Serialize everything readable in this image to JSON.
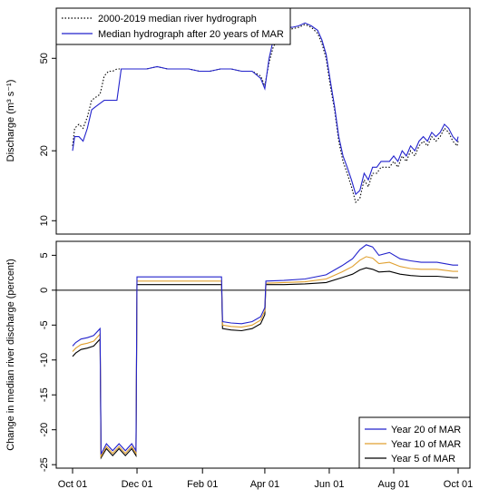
{
  "chart_data": [
    {
      "type": "line",
      "ylabel": "Discharge (m³ s⁻¹)",
      "y_scale": "log",
      "ylim": [
        9,
        80
      ],
      "y_ticks": [
        10,
        20,
        50
      ],
      "x_ticks": [
        "Oct 01",
        "Dec 01",
        "Feb 01",
        "Apr 01",
        "Jun 01",
        "Aug 01",
        "Oct 01"
      ],
      "x_tick_days": [
        0,
        61,
        123,
        182,
        243,
        304,
        365
      ],
      "legend": {
        "position": "top-left",
        "entries": [
          "2000-2019 median river hydrograph",
          "Median hydrograph after 20 years of MAR"
        ]
      },
      "series": [
        {
          "name": "2000-2019 median river hydrograph",
          "color": "#000000",
          "style": "dotted",
          "points": [
            [
              0,
              21
            ],
            [
              2,
              25
            ],
            [
              6,
              26
            ],
            [
              10,
              25
            ],
            [
              14,
              28
            ],
            [
              18,
              33
            ],
            [
              22,
              34
            ],
            [
              26,
              35
            ],
            [
              30,
              42
            ],
            [
              34,
              44
            ],
            [
              38,
              44
            ],
            [
              42,
              45
            ],
            [
              50,
              45
            ],
            [
              60,
              45
            ],
            [
              70,
              45
            ],
            [
              80,
              46
            ],
            [
              90,
              45
            ],
            [
              100,
              45
            ],
            [
              110,
              45
            ],
            [
              120,
              44
            ],
            [
              130,
              44
            ],
            [
              140,
              45
            ],
            [
              150,
              45
            ],
            [
              160,
              44
            ],
            [
              170,
              44
            ],
            [
              178,
              42
            ],
            [
              182,
              38
            ],
            [
              186,
              48
            ],
            [
              190,
              56
            ],
            [
              196,
              62
            ],
            [
              202,
              66
            ],
            [
              208,
              67
            ],
            [
              214,
              68
            ],
            [
              220,
              70
            ],
            [
              226,
              68
            ],
            [
              232,
              64
            ],
            [
              236,
              58
            ],
            [
              240,
              50
            ],
            [
              244,
              38
            ],
            [
              248,
              30
            ],
            [
              252,
              22
            ],
            [
              256,
              18
            ],
            [
              260,
              16
            ],
            [
              264,
              14
            ],
            [
              268,
              12
            ],
            [
              272,
              12.5
            ],
            [
              276,
              15
            ],
            [
              280,
              14
            ],
            [
              284,
              16
            ],
            [
              288,
              16
            ],
            [
              292,
              17
            ],
            [
              296,
              17
            ],
            [
              300,
              17
            ],
            [
              304,
              18
            ],
            [
              308,
              17
            ],
            [
              312,
              19
            ],
            [
              316,
              18
            ],
            [
              320,
              20
            ],
            [
              324,
              19
            ],
            [
              328,
              21
            ],
            [
              332,
              22
            ],
            [
              336,
              21
            ],
            [
              340,
              23
            ],
            [
              344,
              22
            ],
            [
              348,
              23
            ],
            [
              352,
              25
            ],
            [
              356,
              24
            ],
            [
              360,
              22
            ],
            [
              364,
              21
            ],
            [
              365,
              22
            ]
          ]
        },
        {
          "name": "Median hydrograph after 20 years of MAR",
          "color": "#2222cc",
          "style": "solid",
          "points": [
            [
              0,
              20
            ],
            [
              2,
              23
            ],
            [
              6,
              23
            ],
            [
              10,
              22
            ],
            [
              14,
              25
            ],
            [
              18,
              30
            ],
            [
              22,
              31
            ],
            [
              26,
              32
            ],
            [
              30,
              33
            ],
            [
              34,
              33
            ],
            [
              38,
              33
            ],
            [
              42,
              33
            ],
            [
              46,
              45
            ],
            [
              50,
              45
            ],
            [
              60,
              45
            ],
            [
              70,
              45
            ],
            [
              80,
              46
            ],
            [
              90,
              45
            ],
            [
              100,
              45
            ],
            [
              110,
              45
            ],
            [
              120,
              44
            ],
            [
              130,
              44
            ],
            [
              140,
              45
            ],
            [
              150,
              45
            ],
            [
              160,
              44
            ],
            [
              170,
              44
            ],
            [
              178,
              41
            ],
            [
              182,
              37
            ],
            [
              186,
              50
            ],
            [
              190,
              60
            ],
            [
              196,
              64
            ],
            [
              202,
              68
            ],
            [
              208,
              68
            ],
            [
              214,
              69
            ],
            [
              220,
              71
            ],
            [
              226,
              69
            ],
            [
              232,
              66
            ],
            [
              236,
              60
            ],
            [
              240,
              52
            ],
            [
              244,
              40
            ],
            [
              248,
              31
            ],
            [
              252,
              23
            ],
            [
              256,
              19
            ],
            [
              260,
              17
            ],
            [
              264,
              15
            ],
            [
              268,
              13
            ],
            [
              272,
              13.5
            ],
            [
              276,
              16
            ],
            [
              280,
              15
            ],
            [
              284,
              17
            ],
            [
              288,
              17
            ],
            [
              292,
              18
            ],
            [
              296,
              18
            ],
            [
              300,
              18
            ],
            [
              304,
              19
            ],
            [
              308,
              18
            ],
            [
              312,
              20
            ],
            [
              316,
              19
            ],
            [
              320,
              21
            ],
            [
              324,
              20
            ],
            [
              328,
              22
            ],
            [
              332,
              23
            ],
            [
              336,
              22
            ],
            [
              340,
              24
            ],
            [
              344,
              23
            ],
            [
              348,
              24
            ],
            [
              352,
              26
            ],
            [
              356,
              25
            ],
            [
              360,
              23
            ],
            [
              364,
              22
            ],
            [
              365,
              23
            ]
          ]
        }
      ]
    },
    {
      "type": "line",
      "ylabel": "Change in median river discharge (percent)",
      "ylim": [
        -25.5,
        7
      ],
      "y_ticks": [
        -25,
        -20,
        -15,
        -10,
        -5,
        0,
        5
      ],
      "x_ticks": [
        "Oct 01",
        "Dec 01",
        "Feb 01",
        "Apr 01",
        "Jun 01",
        "Aug 01",
        "Oct 01"
      ],
      "x_tick_days": [
        0,
        61,
        123,
        182,
        243,
        304,
        365
      ],
      "zero_line": true,
      "legend": {
        "position": "bottom-right",
        "entries": [
          "Year 20 of MAR",
          "Year 10 of MAR",
          "Year 5 of MAR"
        ]
      },
      "series": [
        {
          "name": "Year 20 of MAR",
          "color": "#2222cc",
          "points": [
            [
              0,
              -8
            ],
            [
              3,
              -7.5
            ],
            [
              8,
              -7
            ],
            [
              14,
              -6.8
            ],
            [
              20,
              -6.5
            ],
            [
              26,
              -5.5
            ],
            [
              27,
              -23.5
            ],
            [
              32,
              -22
            ],
            [
              38,
              -23
            ],
            [
              44,
              -22
            ],
            [
              50,
              -23
            ],
            [
              56,
              -22
            ],
            [
              60,
              -23
            ],
            [
              61,
              1.9
            ],
            [
              100,
              1.9
            ],
            [
              141,
              1.9
            ],
            [
              142,
              -4.5
            ],
            [
              150,
              -4.7
            ],
            [
              160,
              -4.8
            ],
            [
              170,
              -4.5
            ],
            [
              178,
              -3.8
            ],
            [
              182,
              -2.5
            ],
            [
              183,
              1.3
            ],
            [
              200,
              1.4
            ],
            [
              220,
              1.6
            ],
            [
              240,
              2.2
            ],
            [
              255,
              3.5
            ],
            [
              265,
              4.5
            ],
            [
              272,
              5.8
            ],
            [
              278,
              6.5
            ],
            [
              284,
              6.2
            ],
            [
              290,
              5.0
            ],
            [
              300,
              5.4
            ],
            [
              310,
              4.5
            ],
            [
              320,
              4.2
            ],
            [
              330,
              4.0
            ],
            [
              345,
              4.0
            ],
            [
              360,
              3.6
            ],
            [
              365,
              3.6
            ]
          ]
        },
        {
          "name": "Year 10 of MAR",
          "color": "#e0a030",
          "points": [
            [
              0,
              -8.8
            ],
            [
              3,
              -8.3
            ],
            [
              8,
              -7.8
            ],
            [
              14,
              -7.6
            ],
            [
              20,
              -7.3
            ],
            [
              26,
              -6.3
            ],
            [
              27,
              -23.8
            ],
            [
              32,
              -22.4
            ],
            [
              38,
              -23.4
            ],
            [
              44,
              -22.4
            ],
            [
              50,
              -23.4
            ],
            [
              56,
              -22.4
            ],
            [
              60,
              -23.4
            ],
            [
              61,
              1.3
            ],
            [
              100,
              1.3
            ],
            [
              141,
              1.3
            ],
            [
              142,
              -5.0
            ],
            [
              150,
              -5.2
            ],
            [
              160,
              -5.3
            ],
            [
              170,
              -5.0
            ],
            [
              178,
              -4.3
            ],
            [
              182,
              -3.0
            ],
            [
              183,
              1.0
            ],
            [
              200,
              1.1
            ],
            [
              220,
              1.2
            ],
            [
              240,
              1.6
            ],
            [
              255,
              2.6
            ],
            [
              265,
              3.4
            ],
            [
              272,
              4.3
            ],
            [
              278,
              4.8
            ],
            [
              284,
              4.6
            ],
            [
              290,
              3.8
            ],
            [
              300,
              4.0
            ],
            [
              310,
              3.4
            ],
            [
              320,
              3.1
            ],
            [
              330,
              3.0
            ],
            [
              345,
              3.0
            ],
            [
              360,
              2.7
            ],
            [
              365,
              2.7
            ]
          ]
        },
        {
          "name": "Year 5 of MAR",
          "color": "#000000",
          "points": [
            [
              0,
              -9.5
            ],
            [
              3,
              -9.0
            ],
            [
              8,
              -8.5
            ],
            [
              14,
              -8.3
            ],
            [
              20,
              -8.0
            ],
            [
              26,
              -7.0
            ],
            [
              27,
              -24.0
            ],
            [
              32,
              -22.7
            ],
            [
              38,
              -23.7
            ],
            [
              44,
              -22.7
            ],
            [
              50,
              -23.7
            ],
            [
              56,
              -22.7
            ],
            [
              60,
              -23.7
            ],
            [
              61,
              0.8
            ],
            [
              100,
              0.8
            ],
            [
              141,
              0.8
            ],
            [
              142,
              -5.5
            ],
            [
              150,
              -5.7
            ],
            [
              160,
              -5.8
            ],
            [
              170,
              -5.5
            ],
            [
              178,
              -4.8
            ],
            [
              182,
              -3.5
            ],
            [
              183,
              0.8
            ],
            [
              200,
              0.8
            ],
            [
              220,
              0.9
            ],
            [
              240,
              1.1
            ],
            [
              255,
              1.8
            ],
            [
              265,
              2.3
            ],
            [
              272,
              2.9
            ],
            [
              278,
              3.2
            ],
            [
              284,
              3.0
            ],
            [
              290,
              2.6
            ],
            [
              300,
              2.7
            ],
            [
              310,
              2.3
            ],
            [
              320,
              2.1
            ],
            [
              330,
              2.0
            ],
            [
              345,
              2.0
            ],
            [
              360,
              1.8
            ],
            [
              365,
              1.8
            ]
          ]
        }
      ]
    }
  ]
}
